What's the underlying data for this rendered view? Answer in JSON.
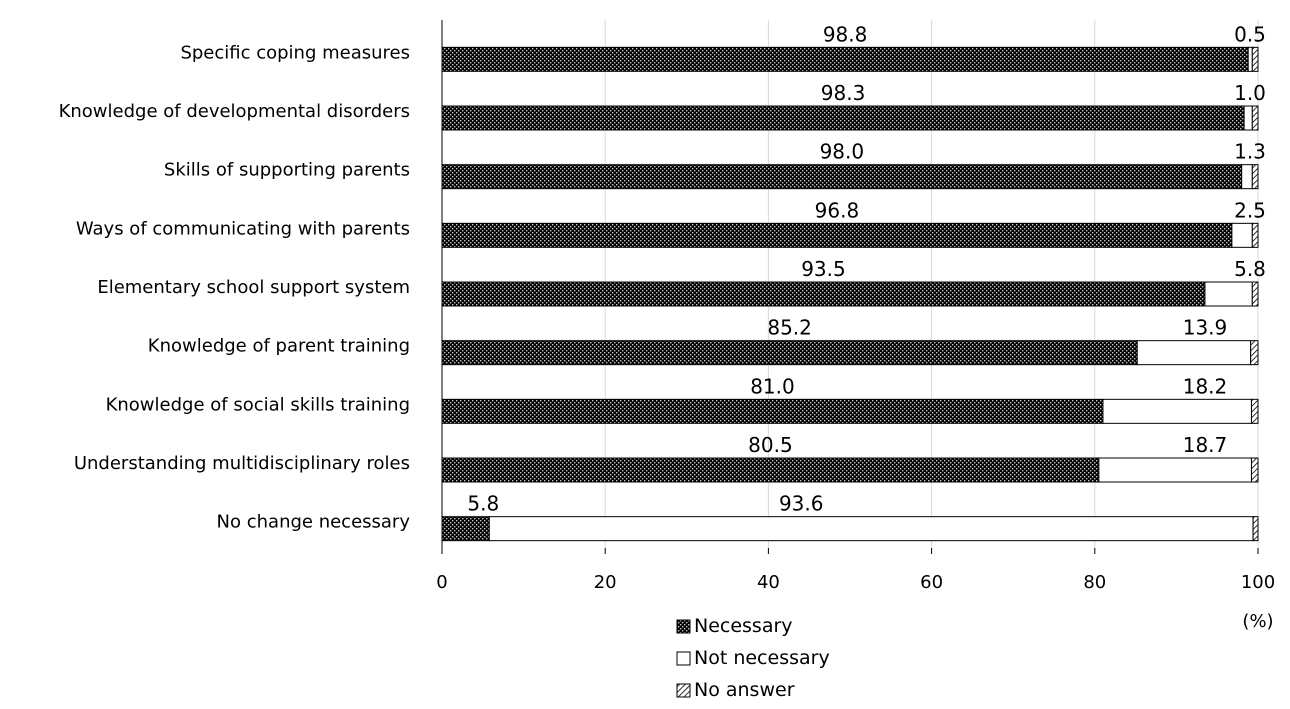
{
  "chart_data": {
    "type": "bar",
    "orientation": "horizontal",
    "stacked": true,
    "categories": [
      "Specific coping measures",
      "Knowledge of developmental disorders",
      "Skills of supporting parents",
      "Ways of communicating with parents",
      "Elementary school support system",
      "Knowledge of parent training",
      "Knowledge of social skills training",
      "Understanding multidisciplinary roles",
      "No change necessary"
    ],
    "series": [
      {
        "name": "Necessary",
        "values": [
          98.8,
          98.3,
          98.0,
          96.8,
          93.5,
          85.2,
          81.0,
          80.5,
          5.8
        ],
        "labels": [
          "98.8",
          "98.3",
          "98.0",
          "96.8",
          "93.5",
          "85.2",
          "81.0",
          "80.5",
          "5.8"
        ],
        "pattern": "dotted-dark"
      },
      {
        "name": "Not necessary",
        "values": [
          0.5,
          1.0,
          1.3,
          2.5,
          5.8,
          13.9,
          18.2,
          18.7,
          93.6
        ],
        "labels": [
          "0.5",
          "1.0",
          "1.3",
          "2.5",
          "5.8",
          "13.9",
          "18.2",
          "18.7",
          "93.6"
        ],
        "pattern": "white"
      },
      {
        "name": "No answer",
        "values": [
          0.7,
          0.7,
          0.7,
          0.7,
          0.7,
          0.9,
          0.8,
          0.8,
          0.6
        ],
        "labels": [],
        "pattern": "diagonal-hatch"
      }
    ],
    "xlim": [
      0,
      100
    ],
    "xticks": [
      "0",
      "20",
      "40",
      "60",
      "80",
      "100"
    ],
    "xunit": "(%)",
    "grid": true,
    "legend_position": "bottom-center",
    "colors": {
      "necessary_fill": "#000000",
      "necessary_dots": "#bfbfbf",
      "bar_stroke": "#000000",
      "grid": "#d9d9d9"
    }
  }
}
